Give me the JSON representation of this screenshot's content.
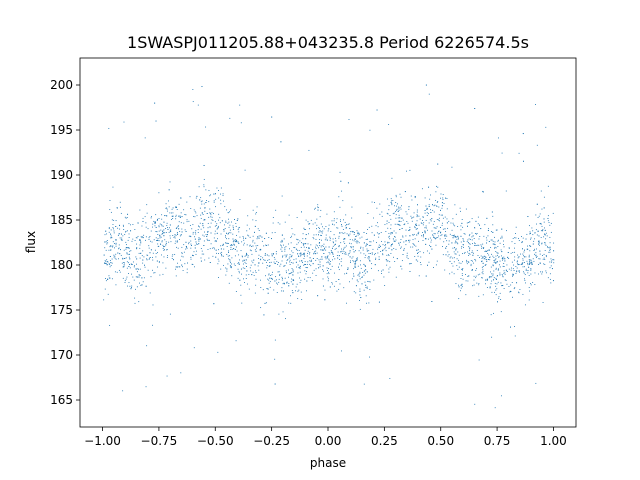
{
  "chart_data": {
    "type": "scatter",
    "title": "1SWASPJ011205.88+043235.8 Period 6226574.5s",
    "xlabel": "phase",
    "ylabel": "flux",
    "xlim": [
      -1.1,
      1.1
    ],
    "ylim": [
      162,
      203
    ],
    "x_ticks": [
      -1.0,
      -0.75,
      -0.5,
      -0.25,
      0.0,
      0.25,
      0.5,
      0.75,
      1.0
    ],
    "x_tick_labels": [
      "−1.00",
      "−0.75",
      "−0.50",
      "−0.25",
      "0.00",
      "0.25",
      "0.50",
      "0.75",
      "1.00"
    ],
    "y_ticks": [
      165,
      170,
      175,
      180,
      185,
      190,
      195,
      200
    ],
    "y_tick_labels": [
      "165",
      "170",
      "175",
      "180",
      "185",
      "190",
      "195",
      "200"
    ],
    "grid": false,
    "legend": "none",
    "series_color": "#1f77b4",
    "phase_range": [
      -1.0,
      1.0
    ],
    "flux_profile": {
      "phase": [
        -1.0,
        -0.95,
        -0.9,
        -0.85,
        -0.8,
        -0.75,
        -0.7,
        -0.65,
        -0.6,
        -0.55,
        -0.5,
        -0.45,
        -0.4,
        -0.35,
        -0.3,
        -0.25,
        -0.2,
        -0.15,
        -0.1,
        -0.05,
        0.0,
        0.05,
        0.1,
        0.15,
        0.2,
        0.25,
        0.3,
        0.35,
        0.4,
        0.45,
        0.5,
        0.55,
        0.6,
        0.65,
        0.7,
        0.75,
        0.8,
        0.85,
        0.9,
        0.95,
        1.0
      ],
      "flux": [
        180.5,
        182.5,
        182.0,
        180.0,
        182.5,
        182.5,
        184.5,
        183.0,
        183.5,
        185.0,
        184.5,
        183.0,
        181.0,
        181.5,
        181.0,
        180.0,
        180.5,
        180.5,
        181.0,
        183.0,
        180.5,
        182.5,
        182.0,
        180.0,
        182.5,
        182.5,
        184.5,
        183.0,
        183.5,
        185.0,
        184.5,
        183.0,
        181.0,
        181.5,
        181.0,
        180.0,
        180.5,
        180.5,
        181.0,
        183.0,
        180.5
      ],
      "scatter": 2.2
    }
  }
}
